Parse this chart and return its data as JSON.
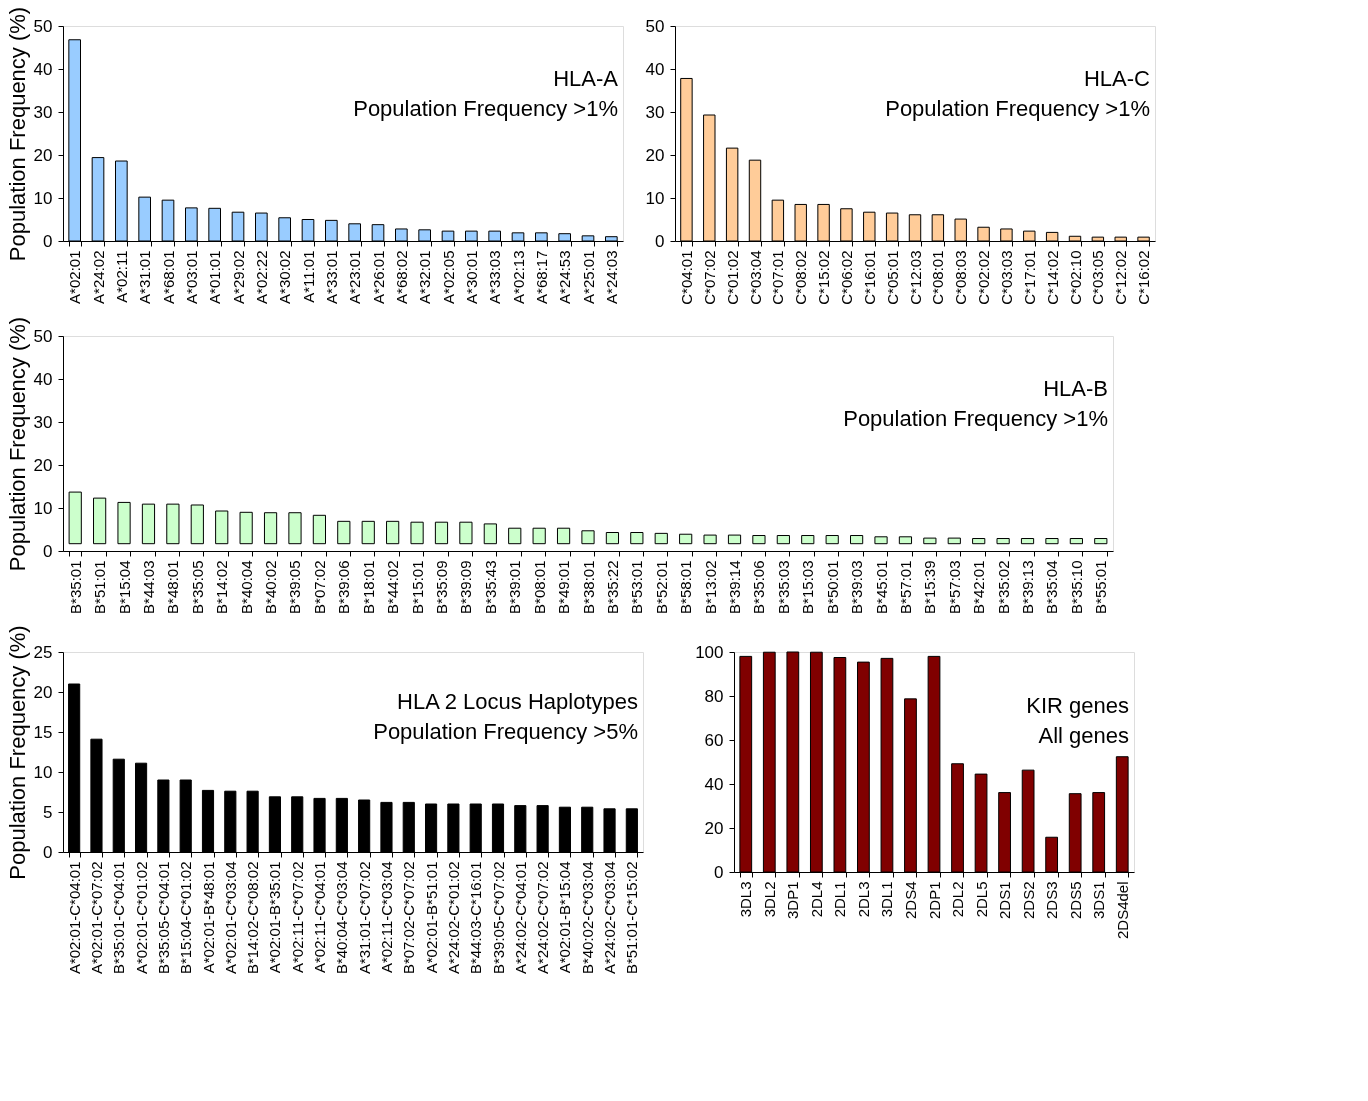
{
  "chart_data": [
    {
      "type": "bar",
      "title": "HLA-A",
      "subtitle": "Population Frequency >1%",
      "ylabel": "Population Frequency (%)",
      "categories": [
        "A*02:01",
        "A*24:02",
        "A*02:11",
        "A*31:01",
        "A*68:01",
        "A*03:01",
        "A*01:01",
        "A*29:02",
        "A*02:22",
        "A*30:02",
        "A*11:01",
        "A*33:01",
        "A*23:01",
        "A*26:01",
        "A*68:02",
        "A*32:01",
        "A*02:05",
        "A*30:01",
        "A*33:03",
        "A*02:13",
        "A*68:17",
        "A*24:53",
        "A*25:01",
        "A*24:03"
      ],
      "values": [
        46.8,
        19.4,
        18.6,
        10.2,
        9.5,
        7.7,
        7.6,
        6.7,
        6.5,
        5.4,
        5.0,
        4.8,
        4.0,
        3.8,
        2.8,
        2.6,
        2.3,
        2.3,
        2.3,
        1.9,
        1.9,
        1.7,
        1.2,
        1.0
      ],
      "color": "#99ccff",
      "ylim": [
        0,
        50
      ],
      "yticks": [
        0,
        10,
        20,
        30,
        40,
        50
      ],
      "grid": false
    },
    {
      "type": "bar",
      "title": "HLA-C",
      "subtitle": "Population Frequency >1%",
      "categories": [
        "C*04:01",
        "C*07:02",
        "C*01:02",
        "C*03:04",
        "C*07:01",
        "C*08:02",
        "C*15:02",
        "C*06:02",
        "C*16:01",
        "C*05:01",
        "C*12:03",
        "C*08:01",
        "C*08:03",
        "C*02:02",
        "C*03:03",
        "C*17:01",
        "C*14:02",
        "C*02:10",
        "C*03:05",
        "C*12:02",
        "C*16:02"
      ],
      "values": [
        37.8,
        29.3,
        21.6,
        18.8,
        9.5,
        8.5,
        8.5,
        7.5,
        6.7,
        6.5,
        6.1,
        6.1,
        5.1,
        3.2,
        2.8,
        2.3,
        2.0,
        1.1,
        0.9,
        0.9,
        0.9
      ],
      "color": "#ffcc99",
      "ylim": [
        0,
        50
      ],
      "yticks": [
        0,
        10,
        20,
        30,
        40,
        50
      ],
      "grid": false
    },
    {
      "type": "bar",
      "title": "HLA-B",
      "subtitle": "Population Frequency >1%",
      "ylabel": "Population Frequency (%)",
      "categories": [
        "B*35:01",
        "B*51:01",
        "B*15:04",
        "B*44:03",
        "B*48:01",
        "B*35:05",
        "B*14:02",
        "B*40:04",
        "B*40:02",
        "B*39:05",
        "B*07:02",
        "B*39:06",
        "B*18:01",
        "B*44:02",
        "B*15:01",
        "B*35:09",
        "B*39:09",
        "B*35:43",
        "B*39:01",
        "B*08:01",
        "B*49:01",
        "B*38:01",
        "B*35:22",
        "B*53:01",
        "B*52:01",
        "B*58:01",
        "B*13:02",
        "B*39:14",
        "B*35:06",
        "B*35:03",
        "B*15:03",
        "B*50:01",
        "B*39:03",
        "B*45:01",
        "B*57:01",
        "B*15:39",
        "B*57:03",
        "B*42:01",
        "B*35:02",
        "B*39:13",
        "B*35:04",
        "B*35:10",
        "B*55:01"
      ],
      "values": [
        12.0,
        10.6,
        9.6,
        9.2,
        9.2,
        9.0,
        7.6,
        7.3,
        7.2,
        7.2,
        6.6,
        5.2,
        5.2,
        5.2,
        5.0,
        5.0,
        5.0,
        4.6,
        3.6,
        3.6,
        3.6,
        3.0,
        2.6,
        2.6,
        2.4,
        2.2,
        2.0,
        2.0,
        1.9,
        1.9,
        1.9,
        1.9,
        1.9,
        1.6,
        1.6,
        1.3,
        1.3,
        1.2,
        1.2,
        1.2,
        1.2,
        1.2,
        1.2
      ],
      "base": [
        1.7,
        1.7,
        1.7,
        1.7,
        1.7,
        1.7,
        1.7,
        1.7,
        1.7,
        1.7,
        1.7,
        1.7,
        1.7,
        1.7,
        1.7,
        1.7,
        1.7,
        1.7,
        1.7,
        1.7,
        1.7,
        1.7,
        1.7,
        1.7,
        1.7,
        1.7,
        1.7,
        1.7,
        1.7,
        1.7,
        1.7,
        1.7,
        1.7,
        1.7,
        1.7,
        1.7,
        1.7,
        1.7,
        1.7,
        1.7,
        1.7,
        1.7,
        1.7
      ],
      "color": "#ccffcc",
      "ylim": [
        0,
        50
      ],
      "yticks": [
        0,
        10,
        20,
        30,
        40,
        50
      ],
      "grid": false
    },
    {
      "type": "bar",
      "title": "HLA 2 Locus Haplotypes",
      "subtitle": "Population Frequency >5%",
      "ylabel": "Population Frequency (%)",
      "categories": [
        "A*02:01-C*04:01",
        "A*02:01-C*07:02",
        "B*35:01-C*04:01",
        "A*02:01-C*01:02",
        "B*35:05-C*04:01",
        "B*15:04-C*01:02",
        "A*02:01-B*48:01",
        "A*02:01-C*03:04",
        "B*14:02-C*08:02",
        "A*02:01-B*35:01",
        "A*02:11-C*07:02",
        "A*02:11-C*04:01",
        "B*40:04-C*03:04",
        "A*31:01-C*07:02",
        "A*02:11-C*03:04",
        "B*07:02-C*07:02",
        "A*02:01-B*51:01",
        "A*24:02-C*01:02",
        "B*44:03-C*16:01",
        "B*39:05-C*07:02",
        "A*24:02-C*04:01",
        "A*24:02-C*07:02",
        "A*02:01-B*15:04",
        "B*40:02-C*03:04",
        "A*24:02-C*03:04",
        "B*51:01-C*15:02"
      ],
      "values": [
        21.0,
        14.1,
        11.6,
        11.1,
        9.0,
        9.0,
        7.7,
        7.6,
        7.6,
        6.9,
        6.9,
        6.7,
        6.7,
        6.5,
        6.2,
        6.2,
        6.0,
        6.0,
        6.0,
        6.0,
        5.8,
        5.8,
        5.6,
        5.6,
        5.4,
        5.4
      ],
      "color": "#000000",
      "ylim": [
        0,
        25
      ],
      "yticks": [
        0,
        5,
        10,
        15,
        20,
        25
      ],
      "grid": false
    },
    {
      "type": "bar",
      "title": "KIR genes",
      "subtitle": "All genes",
      "categories": [
        "3DL3",
        "3DL2",
        "3DP1",
        "2DL4",
        "2DL1",
        "2DL3",
        "3DL1",
        "2DS4",
        "2DP1",
        "2DL2",
        "2DL5",
        "2DS1",
        "2DS2",
        "2DS3",
        "2DS5",
        "3DS1",
        "2DS4del"
      ],
      "values": [
        98.0,
        99.9,
        100,
        99.9,
        97.5,
        95.4,
        97.1,
        78.7,
        98.0,
        49.2,
        44.5,
        36.1,
        46.3,
        15.8,
        35.6,
        36.1,
        52.4
      ],
      "color": "#800000",
      "ylim": [
        0,
        100
      ],
      "yticks": [
        0,
        20,
        40,
        60,
        80,
        100
      ],
      "grid": false
    }
  ]
}
